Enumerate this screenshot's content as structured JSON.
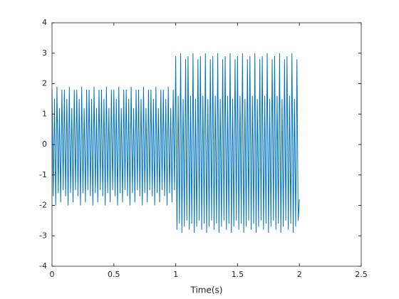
{
  "chart_data": {
    "type": "line",
    "xlabel": "Time(s)",
    "color": "#0072bd",
    "xlim": [
      0,
      2.5
    ],
    "xticks": [
      0,
      0.5,
      1,
      1.5,
      2,
      2.5
    ],
    "ylim": [
      -4,
      4
    ],
    "yticks": [
      -4,
      -3,
      -2,
      -1,
      0,
      1,
      2,
      3,
      4
    ],
    "x": [
      0,
      0.01,
      0.02,
      0.03,
      0.04,
      0.05,
      0.06,
      0.07,
      0.08,
      0.09,
      0.1,
      0.11,
      0.12,
      0.13,
      0.14,
      0.15,
      0.16,
      0.17,
      0.18,
      0.19,
      0.2,
      0.21,
      0.22,
      0.23,
      0.24,
      0.25,
      0.26,
      0.27,
      0.28,
      0.29,
      0.3,
      0.31,
      0.32,
      0.33,
      0.34,
      0.35,
      0.36,
      0.37,
      0.38,
      0.39,
      0.4,
      0.41,
      0.42,
      0.43,
      0.44,
      0.45,
      0.46,
      0.47,
      0.48,
      0.49,
      0.5,
      0.51,
      0.52,
      0.53,
      0.54,
      0.55,
      0.56,
      0.57,
      0.58,
      0.59,
      0.6,
      0.61,
      0.62,
      0.63,
      0.64,
      0.65,
      0.66,
      0.67,
      0.68,
      0.69,
      0.7,
      0.71,
      0.72,
      0.73,
      0.74,
      0.75,
      0.76,
      0.77,
      0.78,
      0.79,
      0.8,
      0.81,
      0.82,
      0.83,
      0.84,
      0.85,
      0.86,
      0.87,
      0.88,
      0.89,
      0.9,
      0.91,
      0.92,
      0.93,
      0.94,
      0.95,
      0.96,
      0.97,
      0.98,
      0.99,
      1,
      1.01,
      1.02,
      1.03,
      1.04,
      1.05,
      1.06,
      1.07,
      1.08,
      1.09,
      1.1,
      1.11,
      1.12,
      1.13,
      1.14,
      1.15,
      1.16,
      1.17,
      1.18,
      1.19,
      1.2,
      1.21,
      1.22,
      1.23,
      1.24,
      1.25,
      1.26,
      1.27,
      1.28,
      1.29,
      1.3,
      1.31,
      1.32,
      1.33,
      1.34,
      1.35,
      1.36,
      1.37,
      1.38,
      1.39,
      1.4,
      1.41,
      1.42,
      1.43,
      1.44,
      1.45,
      1.46,
      1.47,
      1.48,
      1.49,
      1.5,
      1.51,
      1.52,
      1.53,
      1.54,
      1.55,
      1.56,
      1.57,
      1.58,
      1.59,
      1.6,
      1.61,
      1.62,
      1.63,
      1.64,
      1.65,
      1.66,
      1.67,
      1.68,
      1.69,
      1.7,
      1.71,
      1.72,
      1.73,
      1.74,
      1.75,
      1.76,
      1.77,
      1.78,
      1.79,
      1.8,
      1.81,
      1.82,
      1.83,
      1.84,
      1.85,
      1.86,
      1.87,
      1.88,
      1.89,
      1.9,
      1.91,
      1.92,
      1.93,
      1.94,
      1.95,
      1.96,
      1.97,
      1.98,
      1.99,
      2
    ],
    "values": [
      1.8,
      -1.7,
      1.5,
      -2.0,
      1.9,
      -1.6,
      1.2,
      -1.9,
      1.8,
      -1.5,
      1.8,
      -1.7,
      1.5,
      -2.0,
      1.9,
      -1.6,
      1.2,
      -1.9,
      1.8,
      -1.5,
      1.8,
      -1.7,
      1.5,
      -2.0,
      1.9,
      -1.6,
      1.2,
      -1.9,
      1.8,
      -1.5,
      1.8,
      -1.7,
      1.5,
      -2.0,
      1.9,
      -1.6,
      1.2,
      -1.9,
      1.8,
      -1.5,
      1.8,
      -1.7,
      1.5,
      -2.0,
      1.9,
      -1.6,
      1.2,
      -1.9,
      1.8,
      -1.5,
      1.8,
      -1.7,
      1.5,
      -2.0,
      1.9,
      -1.6,
      1.2,
      -1.9,
      1.8,
      -1.5,
      1.8,
      -1.7,
      1.5,
      -2.0,
      1.9,
      -1.6,
      1.2,
      -1.9,
      1.8,
      -1.5,
      1.8,
      -1.7,
      1.5,
      -2.0,
      1.9,
      -1.6,
      1.2,
      -1.9,
      1.8,
      -1.5,
      1.8,
      -1.7,
      1.5,
      -2.0,
      1.9,
      -1.6,
      1.2,
      -1.9,
      1.8,
      -1.5,
      1.8,
      -1.7,
      1.5,
      -2.0,
      1.9,
      -1.6,
      1.2,
      -1.9,
      1.8,
      -1.5,
      2.9,
      -2.8,
      1.6,
      -2.6,
      3.0,
      -2.9,
      1.5,
      -2.7,
      2.8,
      -2.5,
      2.9,
      -2.8,
      1.6,
      -2.6,
      3.0,
      -2.9,
      1.5,
      -2.7,
      2.8,
      -2.5,
      2.9,
      -2.8,
      1.6,
      -2.6,
      3.0,
      -2.9,
      1.5,
      -2.7,
      2.8,
      -2.5,
      2.9,
      -2.8,
      1.6,
      -2.6,
      3.0,
      -2.9,
      1.5,
      -2.7,
      2.8,
      -2.5,
      2.9,
      -2.8,
      1.6,
      -2.6,
      3.0,
      -2.9,
      1.5,
      -2.7,
      2.8,
      -2.5,
      2.9,
      -2.8,
      1.6,
      -2.6,
      3.0,
      -2.9,
      1.5,
      -2.7,
      2.8,
      -2.5,
      2.9,
      -2.8,
      1.6,
      -2.6,
      3.0,
      -2.9,
      1.5,
      -2.7,
      2.8,
      -2.5,
      2.9,
      -2.8,
      1.6,
      -2.6,
      3.0,
      -2.9,
      1.5,
      -2.7,
      2.8,
      -2.5,
      2.9,
      -2.8,
      1.6,
      -2.6,
      3.0,
      -2.9,
      1.5,
      -2.7,
      2.8,
      -2.5,
      2.9,
      -2.8,
      1.6,
      -2.6,
      3.0,
      -2.9,
      1.5,
      -2.7,
      2.8,
      -2.5,
      -1.8
    ]
  }
}
